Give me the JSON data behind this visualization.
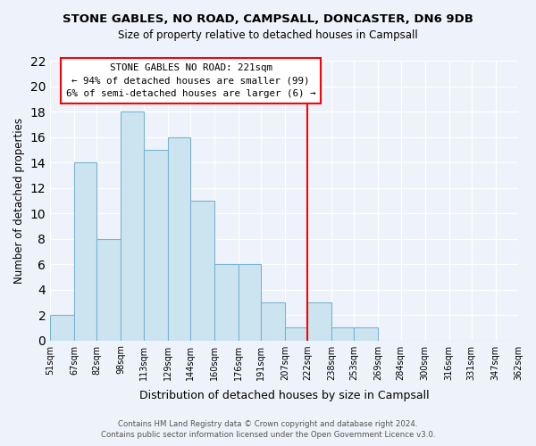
{
  "title": "STONE GABLES, NO ROAD, CAMPSALL, DONCASTER, DN6 9DB",
  "subtitle": "Size of property relative to detached houses in Campsall",
  "xlabel": "Distribution of detached houses by size in Campsall",
  "ylabel": "Number of detached properties",
  "bin_edges": [
    51,
    67,
    82,
    98,
    113,
    129,
    144,
    160,
    176,
    191,
    207,
    222,
    238,
    253,
    269,
    284,
    300,
    316,
    331,
    347,
    362
  ],
  "bin_labels": [
    "51sqm",
    "67sqm",
    "82sqm",
    "98sqm",
    "113sqm",
    "129sqm",
    "144sqm",
    "160sqm",
    "176sqm",
    "191sqm",
    "207sqm",
    "222sqm",
    "238sqm",
    "253sqm",
    "269sqm",
    "284sqm",
    "300sqm",
    "316sqm",
    "331sqm",
    "347sqm",
    "362sqm"
  ],
  "counts": [
    2,
    14,
    8,
    18,
    15,
    16,
    11,
    6,
    6,
    3,
    1,
    3,
    1,
    1,
    0,
    0,
    0,
    0,
    0,
    0
  ],
  "bar_color": "#cce4f0",
  "bar_edge_color": "#7ab4d0",
  "vline_x": 222,
  "vline_color": "red",
  "annotation_title": "STONE GABLES NO ROAD: 221sqm",
  "annotation_line1": "← 94% of detached houses are smaller (99)",
  "annotation_line2": "6% of semi-detached houses are larger (6) →",
  "ylim": [
    0,
    22
  ],
  "yticks": [
    0,
    2,
    4,
    6,
    8,
    10,
    12,
    14,
    16,
    18,
    20,
    22
  ],
  "footer1": "Contains HM Land Registry data © Crown copyright and database right 2024.",
  "footer2": "Contains public sector information licensed under the Open Government Licence v3.0.",
  "bg_color": "#eef2fb"
}
